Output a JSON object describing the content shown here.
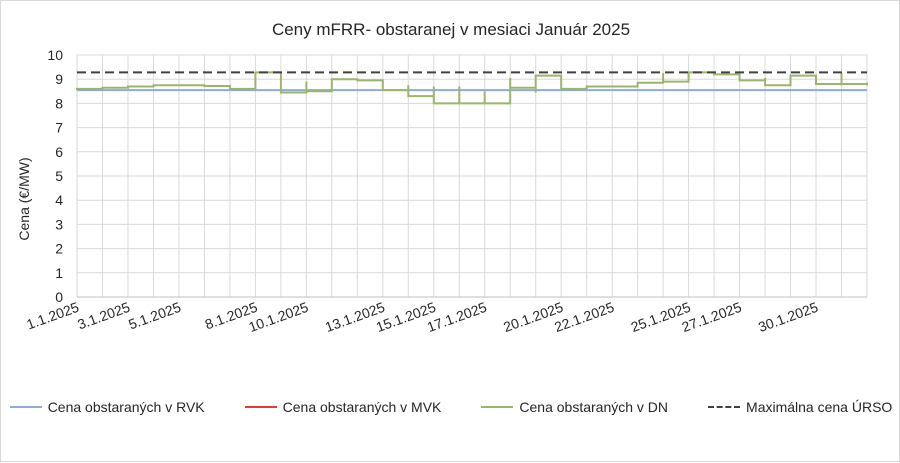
{
  "chart_data": {
    "type": "line",
    "title": "Ceny mFRR- obstaranej v mesiaci Január 2025",
    "ylabel": "Cena (€/MW)",
    "xlabel": "",
    "ylim": [
      0,
      10
    ],
    "yticks": [
      0,
      1,
      2,
      3,
      4,
      5,
      6,
      7,
      8,
      9,
      10
    ],
    "grid": true,
    "legend_position": "bottom",
    "x_range": [
      "1.1.2025",
      "1.2.2025"
    ],
    "x_tick_labels": [
      "1.1.2025",
      "3.1.2025",
      "5.1.2025",
      "8.1.2025",
      "10.1.2025",
      "13.1.2025",
      "15.1.2025",
      "17.1.2025",
      "20.1.2025",
      "22.1.2025",
      "25.1.2025",
      "27.1.2025",
      "30.1.2025"
    ],
    "series": [
      {
        "name": "Cena obstaraných v RVK",
        "color": "#8faadc",
        "style": "solid",
        "points": [
          [
            "1.1.2025",
            8.55
          ],
          [
            "1.2.2025",
            8.55
          ]
        ]
      },
      {
        "name": "Cena obstaraných v MVK",
        "color": "#e03c31",
        "style": "solid",
        "points": []
      },
      {
        "name": "Cena obstaraných v DN",
        "color": "#9bb56a",
        "style": "solid",
        "points": [
          [
            "1.1.2025",
            8.55
          ],
          [
            "1.1.2025",
            8.6
          ],
          [
            "2.1.2025",
            8.6
          ],
          [
            "2.1.2025",
            8.65
          ],
          [
            "3.1.2025",
            8.7
          ],
          [
            "4.1.2025",
            8.75
          ],
          [
            "5.1.2025",
            8.75
          ],
          [
            "6.1.2025",
            8.72
          ],
          [
            "7.1.2025",
            8.65
          ],
          [
            "7.1.2025",
            8.6
          ],
          [
            "8.1.2025",
            8.6
          ],
          [
            "8.1.2025",
            9.3
          ],
          [
            "8.1.2025",
            9.28
          ],
          [
            "9.1.2025",
            9.28
          ],
          [
            "9.1.2025",
            8.6
          ],
          [
            "9.1.2025",
            8.9
          ],
          [
            "9.1.2025",
            8.45
          ],
          [
            "10.1.2025",
            8.45
          ],
          [
            "10.1.2025",
            8.9
          ],
          [
            "10.1.2025",
            8.5
          ],
          [
            "11.1.2025",
            8.5
          ],
          [
            "11.1.2025",
            9.0
          ],
          [
            "12.1.2025",
            8.95
          ],
          [
            "13.1.2025",
            8.95
          ],
          [
            "13.1.2025",
            8.55
          ],
          [
            "14.1.2025",
            8.55
          ],
          [
            "14.1.2025",
            8.75
          ],
          [
            "14.1.2025",
            8.3
          ],
          [
            "15.1.2025",
            8.3
          ],
          [
            "15.1.2025",
            8.7
          ],
          [
            "15.1.2025",
            8.0
          ],
          [
            "16.1.2025",
            8.0
          ],
          [
            "16.1.2025",
            8.7
          ],
          [
            "16.1.2025",
            8.0
          ],
          [
            "17.1.2025",
            8.0
          ],
          [
            "17.1.2025",
            8.5
          ],
          [
            "17.1.2025",
            8.0
          ],
          [
            "18.1.2025",
            8.0
          ],
          [
            "18.1.2025",
            9.05
          ],
          [
            "18.1.2025",
            8.65
          ],
          [
            "19.1.2025",
            8.65
          ],
          [
            "19.1.2025",
            8.45
          ],
          [
            "19.1.2025",
            9.15
          ],
          [
            "20.1.2025",
            9.1
          ],
          [
            "20.1.2025",
            8.6
          ],
          [
            "21.1.2025",
            8.55
          ],
          [
            "21.1.2025",
            8.7
          ],
          [
            "22.1.2025",
            8.7
          ],
          [
            "23.1.2025",
            8.85
          ],
          [
            "24.1.2025",
            8.85
          ],
          [
            "24.1.2025",
            9.25
          ],
          [
            "24.1.2025",
            8.9
          ],
          [
            "25.1.2025",
            8.9
          ],
          [
            "25.1.2025",
            9.28
          ],
          [
            "26.1.2025",
            9.2
          ],
          [
            "27.1.2025",
            9.25
          ],
          [
            "27.1.2025",
            8.95
          ],
          [
            "28.1.2025",
            9.05
          ],
          [
            "28.1.2025",
            8.75
          ],
          [
            "29.1.2025",
            8.75
          ],
          [
            "29.1.2025",
            9.15
          ],
          [
            "30.1.2025",
            9.1
          ],
          [
            "30.1.2025",
            8.8
          ],
          [
            "31.1.2025",
            8.75
          ],
          [
            "31.1.2025",
            9.25
          ],
          [
            "31.1.2025",
            8.8
          ],
          [
            "1.2.2025",
            8.75
          ],
          [
            "1.2.2025",
            8.85
          ]
        ]
      },
      {
        "name": "Maximálna cena ÚRSO",
        "color": "#404040",
        "style": "dashed",
        "points": [
          [
            "1.1.2025",
            9.28
          ],
          [
            "1.2.2025",
            9.28
          ]
        ]
      }
    ]
  }
}
